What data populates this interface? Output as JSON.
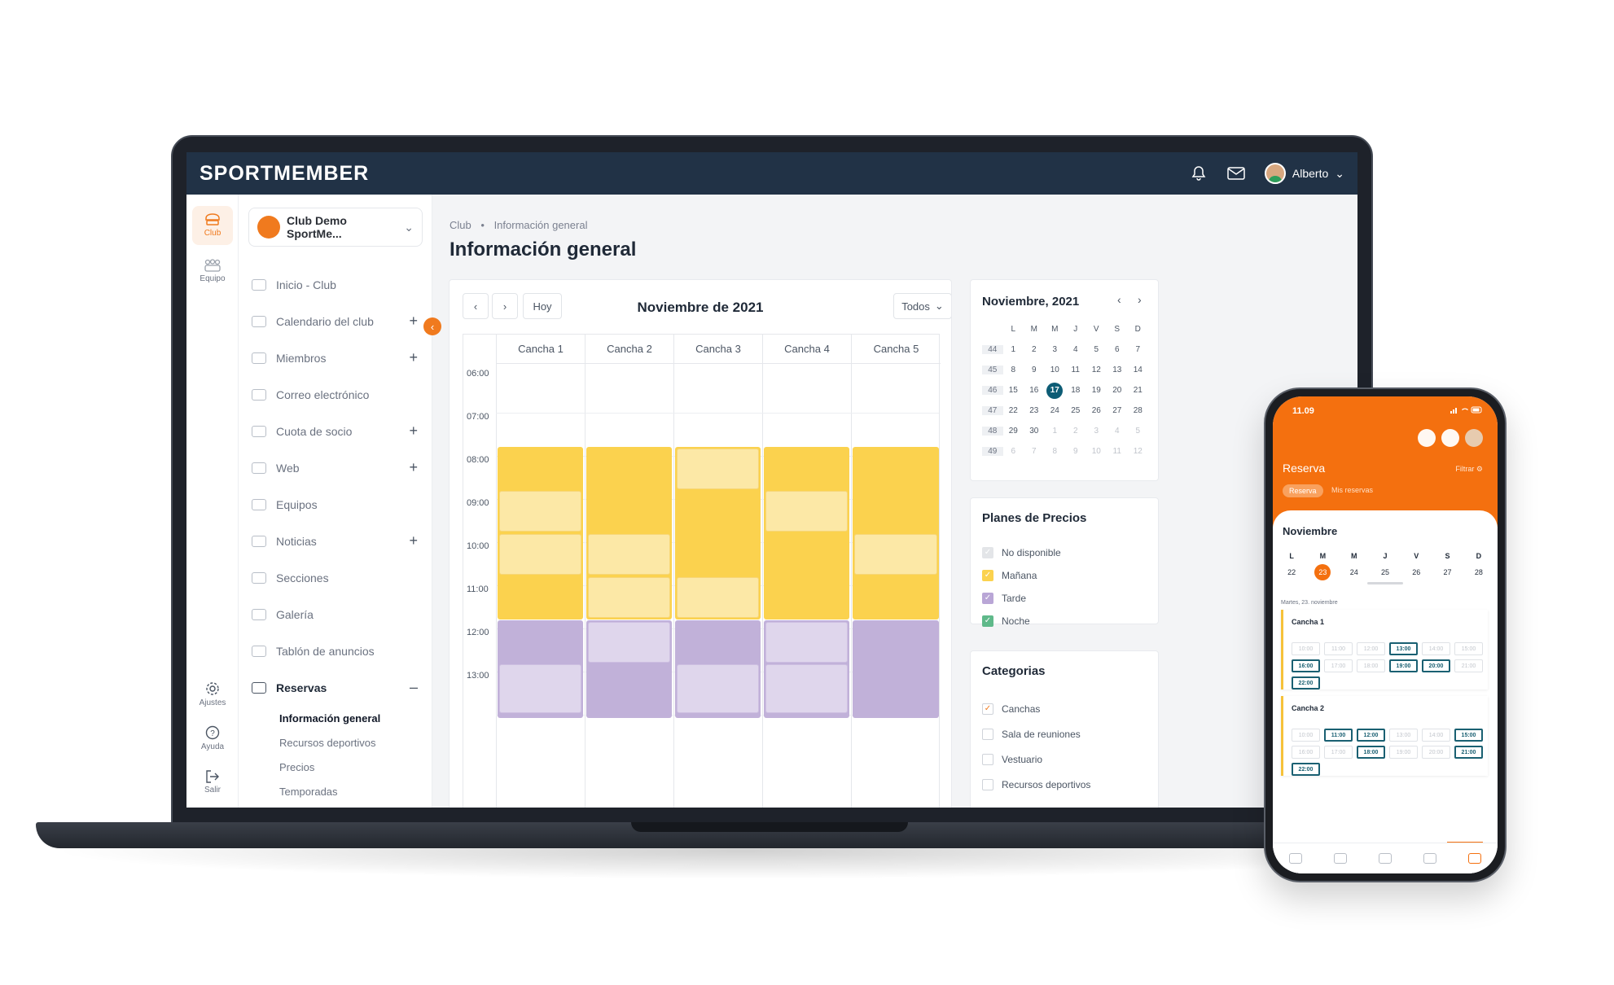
{
  "app": {
    "brand": "SPORTMEMBER",
    "user_name": "Alberto",
    "accent_color": "#f07a1e",
    "header_color": "#213246"
  },
  "rail": {
    "items": [
      {
        "label": "Club",
        "icon": "club-icon",
        "active": true
      },
      {
        "label": "Equipo",
        "icon": "team-icon",
        "active": false
      },
      {
        "label": "Ajustes",
        "icon": "gear-icon",
        "active": false
      },
      {
        "label": "Ayuda",
        "icon": "help-icon",
        "active": false
      },
      {
        "label": "Salir",
        "icon": "logout-icon",
        "active": false
      }
    ]
  },
  "sidebar": {
    "club_name": "Club Demo SportMe...",
    "items": [
      {
        "label": "Inicio - Club",
        "expandable": false
      },
      {
        "label": "Calendario del club",
        "expandable": true
      },
      {
        "label": "Miembros",
        "expandable": true
      },
      {
        "label": "Correo electrónico",
        "expandable": false
      },
      {
        "label": "Cuota de socio",
        "expandable": true
      },
      {
        "label": "Web",
        "expandable": true
      },
      {
        "label": "Equipos",
        "expandable": false
      },
      {
        "label": "Noticias",
        "expandable": true
      },
      {
        "label": "Secciones",
        "expandable": false
      },
      {
        "label": "Galería",
        "expandable": false
      },
      {
        "label": "Tablón de anuncios",
        "expandable": false
      },
      {
        "label": "Reservas",
        "expandable": true,
        "expanded": true
      }
    ],
    "reservas_sub": [
      "Información general",
      "Recursos deportivos",
      "Precios",
      "Temporadas"
    ],
    "active_sub": "Información general",
    "plus": "+",
    "minus": "–"
  },
  "main": {
    "breadcrumb": [
      "Club",
      "Información general"
    ],
    "breadcrumb_sep": "•",
    "title": "Información general",
    "calendar": {
      "prev": "‹",
      "next": "›",
      "today_label": "Hoy",
      "title": "Noviembre de 2021",
      "filter_label": "Todos",
      "courts": [
        "Cancha 1",
        "Cancha 2",
        "Cancha 3",
        "Cancha 4",
        "Cancha 5"
      ],
      "times": [
        "06:00",
        "07:00",
        "08:00",
        "09:00",
        "10:00",
        "11:00",
        "12:00",
        "13:00"
      ]
    }
  },
  "mini_calendar": {
    "title": "Noviembre, 2021",
    "prev": "‹",
    "next": "›",
    "weekdays": [
      "L",
      "M",
      "M",
      "J",
      "V",
      "S",
      "D"
    ],
    "weeks": [
      {
        "wk": "44",
        "days": [
          "1",
          "2",
          "3",
          "4",
          "5",
          "6",
          "7"
        ]
      },
      {
        "wk": "45",
        "days": [
          "8",
          "9",
          "10",
          "11",
          "12",
          "13",
          "14"
        ]
      },
      {
        "wk": "46",
        "days": [
          "15",
          "16",
          "17",
          "18",
          "19",
          "20",
          "21"
        ]
      },
      {
        "wk": "47",
        "days": [
          "22",
          "23",
          "24",
          "25",
          "26",
          "27",
          "28"
        ]
      },
      {
        "wk": "48",
        "days": [
          "29",
          "30",
          "1",
          "2",
          "3",
          "4",
          "5"
        ]
      },
      {
        "wk": "49",
        "days": [
          "6",
          "7",
          "8",
          "9",
          "10",
          "11",
          "12"
        ]
      }
    ],
    "today": "17"
  },
  "price_plans": {
    "title": "Planes de Precios",
    "items": [
      {
        "label": "No disponible",
        "color": "#e3e5e8"
      },
      {
        "label": "Mañana",
        "color": "#fbd24e"
      },
      {
        "label": "Tarde",
        "color": "#b9a6d6"
      },
      {
        "label": "Noche",
        "color": "#5fb98a"
      }
    ]
  },
  "categories": {
    "title": "Categorias",
    "items": [
      {
        "label": "Canchas",
        "checked": true
      },
      {
        "label": "Sala de reuniones",
        "checked": false
      },
      {
        "label": "Vestuario",
        "checked": false
      },
      {
        "label": "Recursos deportivos",
        "checked": false
      }
    ]
  },
  "phone": {
    "time": "11.09",
    "title": "Reserva",
    "filter": "Filtrar",
    "tab_active": "Reserva",
    "tab_other": "Mis reservas",
    "month": "Noviembre",
    "weekdays": [
      "L",
      "M",
      "M",
      "J",
      "V",
      "S",
      "D"
    ],
    "days": [
      "22",
      "23",
      "24",
      "25",
      "26",
      "27",
      "28"
    ],
    "selected_day": "23",
    "date_label": "Martes, 23. noviembre",
    "courts": [
      {
        "name": "Cancha 1",
        "slots": [
          {
            "t": "10:00",
            "on": false
          },
          {
            "t": "11:00",
            "on": false
          },
          {
            "t": "12:00",
            "on": false
          },
          {
            "t": "13:00",
            "on": true
          },
          {
            "t": "14:00",
            "on": false
          },
          {
            "t": "15:00",
            "on": false
          },
          {
            "t": "16:00",
            "on": true
          },
          {
            "t": "17:00",
            "on": false
          },
          {
            "t": "18:00",
            "on": false
          },
          {
            "t": "19:00",
            "on": true
          },
          {
            "t": "20:00",
            "on": true
          },
          {
            "t": "21:00",
            "on": false
          },
          {
            "t": "22:00",
            "on": true
          }
        ]
      },
      {
        "name": "Cancha 2",
        "slots": [
          {
            "t": "10:00",
            "on": false
          },
          {
            "t": "11:00",
            "on": true
          },
          {
            "t": "12:00",
            "on": true
          },
          {
            "t": "13:00",
            "on": false
          },
          {
            "t": "14:00",
            "on": false
          },
          {
            "t": "15:00",
            "on": true
          },
          {
            "t": "16:00",
            "on": false
          },
          {
            "t": "17:00",
            "on": false
          },
          {
            "t": "18:00",
            "on": true
          },
          {
            "t": "19:00",
            "on": false
          },
          {
            "t": "20:00",
            "on": false
          },
          {
            "t": "21:00",
            "on": true
          },
          {
            "t": "22:00",
            "on": true
          }
        ]
      }
    ]
  }
}
